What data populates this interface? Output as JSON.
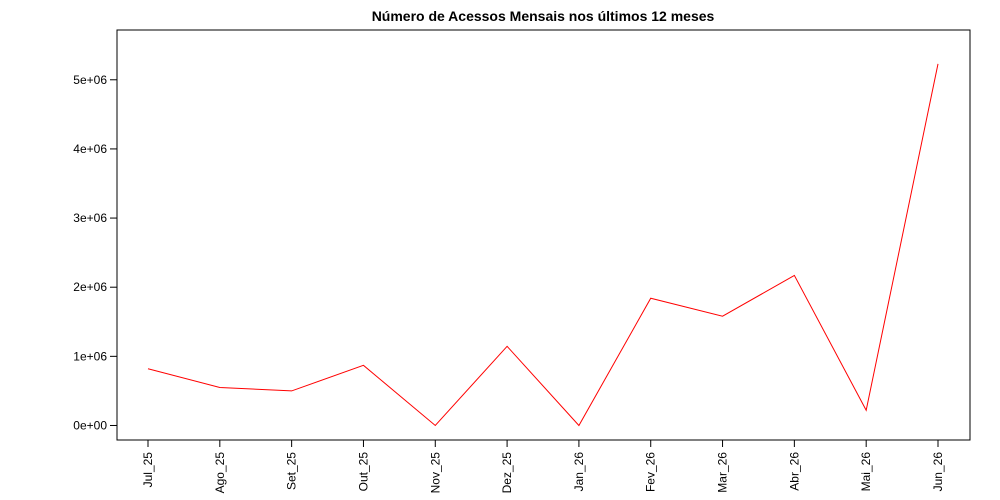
{
  "chart_data": {
    "type": "line",
    "title": "Número de Acessos Mensais nos últimos 12 meses",
    "categories": [
      "Jul_25",
      "Ago_25",
      "Set_25",
      "Out_25",
      "Nov_25",
      "Dez_25",
      "Jan_26",
      "Fev_26",
      "Mar_26",
      "Abr_26",
      "Mai_26",
      "Jun_26"
    ],
    "series": [
      {
        "color": "#ff0000",
        "values": [
          820000,
          550000,
          500000,
          870000,
          0,
          1145000,
          0,
          1840000,
          1580000,
          2170000,
          220000,
          5230000
        ]
      }
    ],
    "ylim": [
      -210000,
      5720000
    ],
    "yticks": [
      {
        "value": 0,
        "label": "0e+00"
      },
      {
        "value": 1000000,
        "label": "1e+06"
      },
      {
        "value": 2000000,
        "label": "2e+06"
      },
      {
        "value": 3000000,
        "label": "3e+06"
      },
      {
        "value": 4000000,
        "label": "4e+06"
      },
      {
        "value": 5000000,
        "label": "5e+06"
      }
    ]
  }
}
